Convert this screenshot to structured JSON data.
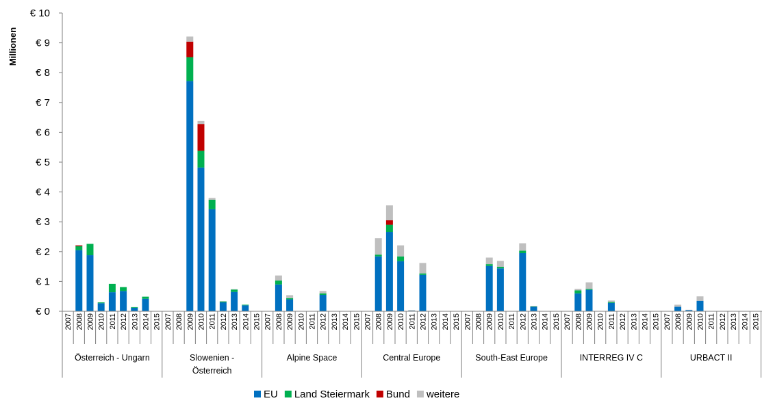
{
  "chart_data": {
    "type": "bar",
    "stacked": true,
    "title": "",
    "xlabel": "",
    "ylabel": "Millionen",
    "ylim": [
      0,
      10
    ],
    "y_ticks": [
      0,
      1,
      2,
      3,
      4,
      5,
      6,
      7,
      8,
      9,
      10
    ],
    "y_tick_labels": [
      "€ 0",
      "€ 1",
      "€ 2",
      "€ 3",
      "€ 4",
      "€ 5",
      "€ 6",
      "€ 7",
      "€ 8",
      "€ 9",
      "€ 10"
    ],
    "grid": false,
    "legend_position": "bottom",
    "years": [
      "2007",
      "2008",
      "2009",
      "2010",
      "2011",
      "2012",
      "2013",
      "2014",
      "2015"
    ],
    "colors": {
      "EU": "#0070c0",
      "Land Steiermark": "#00b050",
      "Bund": "#c00000",
      "weitere": "#bfbfbf"
    },
    "series": [
      {
        "name": "EU",
        "color": "#0070c0"
      },
      {
        "name": "Land Steiermark",
        "color": "#00b050"
      },
      {
        "name": "Bund",
        "color": "#c00000"
      },
      {
        "name": "weitere",
        "color": "#bfbfbf"
      }
    ],
    "groups": [
      {
        "label_lines": [
          "Österreich - Ungarn"
        ],
        "EU": [
          0,
          2.05,
          1.88,
          0.27,
          0.64,
          0.68,
          0.12,
          0.42,
          0
        ],
        "Land Steiermark": [
          0,
          0.13,
          0.38,
          0.03,
          0.28,
          0.13,
          0.02,
          0.07,
          0
        ],
        "Bund": [
          0,
          0.03,
          0,
          0,
          0,
          0,
          0,
          0,
          0
        ],
        "weitere": [
          0,
          0.01,
          0,
          0,
          0,
          0,
          0,
          0,
          0
        ]
      },
      {
        "label_lines": [
          "Slowenien -",
          "Österreich"
        ],
        "EU": [
          0,
          0,
          7.72,
          4.82,
          3.42,
          0.3,
          0.65,
          0.2,
          0
        ],
        "Land Steiermark": [
          0,
          0,
          0.8,
          0.56,
          0.32,
          0.03,
          0.08,
          0.02,
          0
        ],
        "Bund": [
          0,
          0,
          0.52,
          0.9,
          0,
          0,
          0,
          0,
          0
        ],
        "weitere": [
          0,
          0,
          0.17,
          0.1,
          0.06,
          0.01,
          0.01,
          0,
          0
        ]
      },
      {
        "label_lines": [
          "Alpine Space"
        ],
        "EU": [
          0,
          0.9,
          0.4,
          0,
          0,
          0.55,
          0,
          0,
          0
        ],
        "Land Steiermark": [
          0,
          0.13,
          0.04,
          0,
          0,
          0.05,
          0,
          0,
          0
        ],
        "Bund": [
          0,
          0,
          0,
          0,
          0,
          0,
          0,
          0,
          0
        ],
        "weitere": [
          0,
          0.17,
          0.1,
          0,
          0,
          0.08,
          0,
          0,
          0
        ]
      },
      {
        "label_lines": [
          "Central Europe"
        ],
        "EU": [
          0,
          1.84,
          2.66,
          1.68,
          0.02,
          1.22,
          0,
          0,
          0
        ],
        "Land Steiermark": [
          0,
          0.06,
          0.24,
          0.16,
          0,
          0.05,
          0,
          0,
          0
        ],
        "Bund": [
          0,
          0,
          0.15,
          0,
          0,
          0,
          0,
          0,
          0
        ],
        "weitere": [
          0,
          0.55,
          0.5,
          0.37,
          0.02,
          0.35,
          0,
          0,
          0
        ]
      },
      {
        "label_lines": [
          "South-East Europe"
        ],
        "EU": [
          0,
          0,
          1.52,
          1.44,
          0,
          1.95,
          0.15,
          0,
          0
        ],
        "Land Steiermark": [
          0,
          0,
          0.06,
          0.05,
          0,
          0.08,
          0.01,
          0,
          0
        ],
        "Bund": [
          0,
          0,
          0,
          0,
          0,
          0,
          0,
          0,
          0
        ],
        "weitere": [
          0,
          0,
          0.22,
          0.2,
          0,
          0.25,
          0.02,
          0,
          0
        ]
      },
      {
        "label_lines": [
          "INTERREG IV C"
        ],
        "EU": [
          0,
          0.6,
          0.72,
          0,
          0.28,
          0,
          0,
          0,
          0
        ],
        "Land Steiermark": [
          0,
          0.1,
          0.03,
          0,
          0.03,
          0,
          0,
          0,
          0
        ],
        "Bund": [
          0,
          0,
          0,
          0,
          0,
          0,
          0,
          0,
          0
        ],
        "weitere": [
          0,
          0.05,
          0.22,
          0,
          0.05,
          0,
          0,
          0,
          0
        ]
      },
      {
        "label_lines": [
          "URBACT II"
        ],
        "EU": [
          0,
          0.15,
          0.04,
          0.35,
          0,
          0,
          0,
          0,
          0
        ],
        "Land Steiermark": [
          0,
          0,
          0,
          0,
          0,
          0,
          0,
          0,
          0
        ],
        "Bund": [
          0,
          0,
          0,
          0,
          0,
          0,
          0,
          0,
          0
        ],
        "weitere": [
          0,
          0.07,
          0.01,
          0.15,
          0,
          0,
          0,
          0,
          0
        ]
      }
    ]
  }
}
